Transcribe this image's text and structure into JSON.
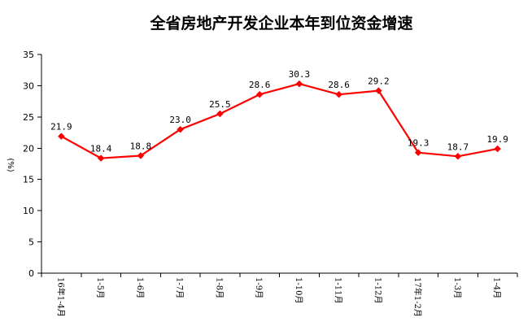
{
  "chart_data": {
    "type": "line",
    "title": "全省房地产开发企业本年到位资金增速",
    "ylabel": "(%)",
    "xlabel": "",
    "ylim": [
      0,
      35
    ],
    "yticks": [
      "0",
      "5",
      "10",
      "15",
      "20",
      "25",
      "30",
      "35"
    ],
    "grid": false,
    "legend": "none",
    "categories": [
      "16年1-4月",
      "1-5月",
      "1-6月",
      "1-7月",
      "1-8月",
      "1-9月",
      "1-10月",
      "1-11月",
      "1-12月",
      "17年1-2月",
      "1-3月",
      "1-4月"
    ],
    "series": [
      {
        "values": [
          21.9,
          18.4,
          18.8,
          23.0,
          25.5,
          28.6,
          30.3,
          28.6,
          29.2,
          19.3,
          18.7,
          19.9
        ],
        "labels": [
          "21.9",
          "18.4",
          "18.8",
          "23.0",
          "25.5",
          "28.6",
          "30.3",
          "28.6",
          "29.2",
          "19.3",
          "18.7",
          "19.9"
        ],
        "color": "#ff0000",
        "marker": "diamond"
      }
    ],
    "axis_color": "#000000"
  }
}
